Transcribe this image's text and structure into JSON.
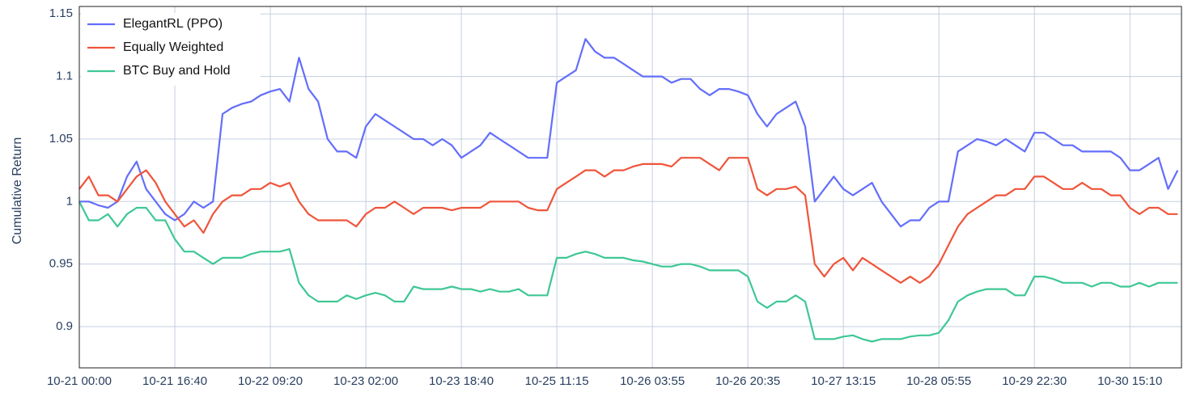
{
  "chart_data": {
    "type": "line",
    "y_label": "Cumulative Return",
    "x": [
      0,
      20,
      40,
      60,
      80,
      100,
      120,
      140,
      160,
      180,
      200,
      220,
      240,
      260,
      280,
      300,
      320,
      340,
      360,
      380,
      400,
      420,
      440,
      460,
      480,
      500,
      520,
      540,
      560,
      580,
      600,
      620,
      640,
      660,
      680,
      700,
      720,
      740,
      760,
      780,
      800,
      820,
      840,
      860,
      880,
      900,
      920,
      940,
      960,
      980,
      1000,
      1020,
      1040,
      1060,
      1080,
      1100,
      1120,
      1140,
      1160,
      1180,
      1200,
      1220,
      1240,
      1260,
      1280,
      1300,
      1320,
      1340,
      1360,
      1380,
      1400,
      1420,
      1440,
      1460,
      1480,
      1500,
      1520,
      1540,
      1560,
      1580,
      1600,
      1620,
      1640,
      1660,
      1680,
      1700,
      1720,
      1740,
      1760,
      1780,
      1800,
      1820,
      1840,
      1860,
      1880,
      1900,
      1920,
      1940,
      1960,
      1980,
      2000,
      2020,
      2040,
      2060,
      2080,
      2100,
      2120,
      2140,
      2160,
      2180,
      2200,
      2220,
      2240,
      2260,
      2280,
      2300
    ],
    "xlim": [
      0,
      2308
    ],
    "xticks": [
      {
        "value": 0,
        "label": "10-21 00:00"
      },
      {
        "value": 200,
        "label": "10-21 16:40"
      },
      {
        "value": 400,
        "label": "10-22 09:20"
      },
      {
        "value": 600,
        "label": "10-23 02:00"
      },
      {
        "value": 800,
        "label": "10-23 18:40"
      },
      {
        "value": 1000,
        "label": "10-25 11:15"
      },
      {
        "value": 1200,
        "label": "10-26 03:55"
      },
      {
        "value": 1400,
        "label": "10-26 20:35"
      },
      {
        "value": 1600,
        "label": "10-27 13:15"
      },
      {
        "value": 1800,
        "label": "10-28 05:55"
      },
      {
        "value": 2000,
        "label": "10-29 22:30"
      },
      {
        "value": 2200,
        "label": "10-30 15:10"
      }
    ],
    "ylim": [
      0.867,
      1.156
    ],
    "yticks": [
      0.9,
      0.95,
      1,
      1.05,
      1.1,
      1.15
    ],
    "grid": true,
    "legend": "top-left",
    "series": [
      {
        "name": "ElegantRL (PPO)",
        "color": "#636efa",
        "values": [
          1.0,
          1.0,
          0.997,
          0.995,
          1.0,
          1.02,
          1.032,
          1.01,
          1.0,
          0.99,
          0.985,
          0.99,
          1.0,
          0.995,
          1.0,
          1.07,
          1.075,
          1.078,
          1.08,
          1.085,
          1.088,
          1.09,
          1.08,
          1.115,
          1.09,
          1.08,
          1.05,
          1.04,
          1.04,
          1.035,
          1.06,
          1.07,
          1.065,
          1.06,
          1.055,
          1.05,
          1.05,
          1.045,
          1.05,
          1.045,
          1.035,
          1.04,
          1.045,
          1.055,
          1.05,
          1.045,
          1.04,
          1.035,
          1.035,
          1.035,
          1.095,
          1.1,
          1.105,
          1.13,
          1.12,
          1.115,
          1.115,
          1.11,
          1.105,
          1.1,
          1.1,
          1.1,
          1.095,
          1.098,
          1.098,
          1.09,
          1.085,
          1.09,
          1.09,
          1.088,
          1.085,
          1.07,
          1.06,
          1.07,
          1.075,
          1.08,
          1.06,
          1.0,
          1.01,
          1.02,
          1.01,
          1.005,
          1.01,
          1.015,
          1.0,
          0.99,
          0.98,
          0.985,
          0.985,
          0.995,
          1.0,
          1.0,
          1.04,
          1.045,
          1.05,
          1.048,
          1.045,
          1.05,
          1.045,
          1.04,
          1.055,
          1.055,
          1.05,
          1.045,
          1.045,
          1.04,
          1.04,
          1.04,
          1.04,
          1.035,
          1.025,
          1.025,
          1.03,
          1.035,
          1.01,
          1.025
        ]
      },
      {
        "name": "Equally Weighted",
        "color": "#ef553b",
        "values": [
          1.01,
          1.02,
          1.005,
          1.005,
          1.0,
          1.01,
          1.02,
          1.025,
          1.015,
          1.0,
          0.99,
          0.98,
          0.985,
          0.975,
          0.99,
          1.0,
          1.005,
          1.005,
          1.01,
          1.01,
          1.015,
          1.012,
          1.015,
          1.0,
          0.99,
          0.985,
          0.985,
          0.985,
          0.985,
          0.98,
          0.99,
          0.995,
          0.995,
          1.0,
          0.995,
          0.99,
          0.995,
          0.995,
          0.995,
          0.993,
          0.995,
          0.995,
          0.995,
          1.0,
          1.0,
          1.0,
          1.0,
          0.995,
          0.993,
          0.993,
          1.01,
          1.015,
          1.02,
          1.025,
          1.025,
          1.02,
          1.025,
          1.025,
          1.028,
          1.03,
          1.03,
          1.03,
          1.028,
          1.035,
          1.035,
          1.035,
          1.03,
          1.025,
          1.035,
          1.035,
          1.035,
          1.01,
          1.005,
          1.01,
          1.01,
          1.012,
          1.005,
          0.95,
          0.94,
          0.95,
          0.955,
          0.945,
          0.955,
          0.95,
          0.945,
          0.94,
          0.935,
          0.94,
          0.935,
          0.94,
          0.95,
          0.965,
          0.98,
          0.99,
          0.995,
          1.0,
          1.005,
          1.005,
          1.01,
          1.01,
          1.02,
          1.02,
          1.015,
          1.01,
          1.01,
          1.015,
          1.01,
          1.01,
          1.005,
          1.005,
          0.995,
          0.99,
          0.995,
          0.995,
          0.99,
          0.99
        ]
      },
      {
        "name": "BTC Buy and Hold",
        "color": "#3fc795",
        "values": [
          1.0,
          0.985,
          0.985,
          0.99,
          0.98,
          0.99,
          0.995,
          0.995,
          0.985,
          0.985,
          0.97,
          0.96,
          0.96,
          0.955,
          0.95,
          0.955,
          0.955,
          0.955,
          0.958,
          0.96,
          0.96,
          0.96,
          0.962,
          0.935,
          0.925,
          0.92,
          0.92,
          0.92,
          0.925,
          0.922,
          0.925,
          0.927,
          0.925,
          0.92,
          0.92,
          0.932,
          0.93,
          0.93,
          0.93,
          0.932,
          0.93,
          0.93,
          0.928,
          0.93,
          0.928,
          0.928,
          0.93,
          0.925,
          0.925,
          0.925,
          0.955,
          0.955,
          0.958,
          0.96,
          0.958,
          0.955,
          0.955,
          0.955,
          0.953,
          0.952,
          0.95,
          0.948,
          0.948,
          0.95,
          0.95,
          0.948,
          0.945,
          0.945,
          0.945,
          0.945,
          0.94,
          0.92,
          0.915,
          0.92,
          0.92,
          0.925,
          0.92,
          0.89,
          0.89,
          0.89,
          0.892,
          0.893,
          0.89,
          0.888,
          0.89,
          0.89,
          0.89,
          0.892,
          0.893,
          0.893,
          0.895,
          0.905,
          0.92,
          0.925,
          0.928,
          0.93,
          0.93,
          0.93,
          0.925,
          0.925,
          0.94,
          0.94,
          0.938,
          0.935,
          0.935,
          0.935,
          0.932,
          0.935,
          0.935,
          0.932,
          0.932,
          0.935,
          0.932,
          0.935,
          0.935,
          0.935
        ]
      }
    ]
  }
}
